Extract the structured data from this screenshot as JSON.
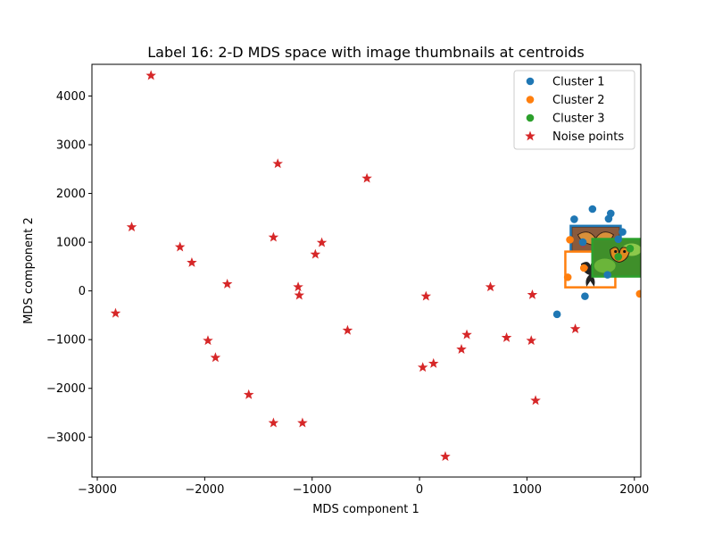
{
  "chart_data": {
    "type": "scatter",
    "title": "Label 16: 2-D MDS space with image thumbnails at centroids",
    "xlabel": "MDS component 1",
    "ylabel": "MDS component 2",
    "xlim": [
      -3050,
      2060
    ],
    "ylim": [
      -3820,
      4650
    ],
    "xticks": [
      -3000,
      -2000,
      -1000,
      0,
      1000,
      2000
    ],
    "yticks": [
      -3000,
      -2000,
      -1000,
      0,
      1000,
      2000,
      3000,
      4000
    ],
    "xtick_labels": [
      "−3000",
      "−2000",
      "−1000",
      "0",
      "1000",
      "2000"
    ],
    "ytick_labels": [
      "−3000",
      "−2000",
      "−1000",
      "0",
      "1000",
      "2000",
      "3000",
      "4000"
    ],
    "grid": false,
    "legend_position": "top-right",
    "series": [
      {
        "name": "Cluster 1",
        "marker": "circle",
        "color": "#1f77b4",
        "points": [
          [
            1610,
            1680
          ],
          [
            1440,
            1470
          ],
          [
            1780,
            1590
          ],
          [
            1760,
            1480
          ],
          [
            1890,
            1210
          ],
          [
            1850,
            1060
          ],
          [
            1520,
            1000
          ],
          [
            1750,
            330
          ],
          [
            1540,
            -110
          ],
          [
            1280,
            -480
          ]
        ]
      },
      {
        "name": "Cluster 2",
        "marker": "circle",
        "color": "#ff7f0e",
        "points": [
          [
            1400,
            1050
          ],
          [
            1530,
            470
          ],
          [
            1380,
            280
          ],
          [
            2050,
            -60
          ]
        ]
      },
      {
        "name": "Cluster 3",
        "marker": "circle",
        "color": "#2ca02c",
        "points": [
          [
            1960,
            870
          ],
          [
            1850,
            700
          ]
        ]
      },
      {
        "name": "Noise points",
        "marker": "star",
        "color": "#d62728",
        "points": [
          [
            -2500,
            4420
          ],
          [
            -1320,
            2610
          ],
          [
            -490,
            2310
          ],
          [
            -2680,
            1310
          ],
          [
            -1360,
            1100
          ],
          [
            -2230,
            900
          ],
          [
            -910,
            990
          ],
          [
            -970,
            750
          ],
          [
            -2120,
            580
          ],
          [
            -1790,
            140
          ],
          [
            -1130,
            80
          ],
          [
            -1120,
            -90
          ],
          [
            -2830,
            -460
          ],
          [
            60,
            -110
          ],
          [
            660,
            80
          ],
          [
            1050,
            -80
          ],
          [
            -670,
            -810
          ],
          [
            440,
            -900
          ],
          [
            810,
            -960
          ],
          [
            1040,
            -1020
          ],
          [
            -1970,
            -1020
          ],
          [
            390,
            -1200
          ],
          [
            1450,
            -780
          ],
          [
            -1900,
            -1370
          ],
          [
            130,
            -1490
          ],
          [
            30,
            -1570
          ],
          [
            -1590,
            -2130
          ],
          [
            1080,
            -2250
          ],
          [
            -1360,
            -2710
          ],
          [
            -1090,
            -2710
          ],
          [
            240,
            -3400
          ]
        ]
      }
    ],
    "thumbnails": [
      {
        "name": "cluster-1-thumbnail",
        "border_color": "#1f77b4",
        "image": "butterfly-photo"
      },
      {
        "name": "cluster-2-thumbnail",
        "border_color": "#ff7f0e",
        "image": "butterfly-photo"
      },
      {
        "name": "cluster-3-thumbnail",
        "border_color": "#2ca02c",
        "image": "butterfly-on-leaves-photo"
      }
    ]
  }
}
